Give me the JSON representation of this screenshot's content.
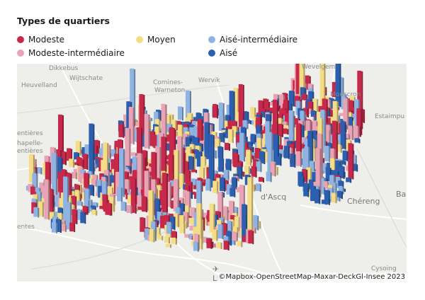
{
  "title": "Types de quartiers",
  "legend": [
    {
      "label": "Modeste",
      "color": "#c8284a"
    },
    {
      "label": "Moyen",
      "color": "#f5dc87"
    },
    {
      "label": "Aisé-intermédiaire",
      "color": "#8fb4e3"
    },
    {
      "label": "Modeste-intermédiaire",
      "color": "#e8a3b5"
    },
    {
      "label": "Aisé",
      "color": "#2d5fb0"
    }
  ],
  "map": {
    "places": {
      "dikkebus": "Dikkebus",
      "wijtschate": "Wijtschate",
      "heuvelland": "Heuvelland",
      "comines": "Comines-",
      "warneton": "Warneton",
      "wervik": "Wervik",
      "wevelgem": "Wevelgem",
      "mouscron": "Mouscron",
      "estaimpuis": "Estaimpu",
      "entieres": "entières",
      "chapelle1": "hapelle-",
      "chapelle2": "entières",
      "ascq": "d'Ascq",
      "chereng": "Chéreng",
      "bai": "Bai",
      "entes": "entes",
      "lille": "LIL",
      "cysoing": "Cysoing"
    },
    "credit": "©Mapbox-OpenStreetMap-Maxar-DeckGl-Insee 2023",
    "airport_icon": "airplane-icon"
  }
}
